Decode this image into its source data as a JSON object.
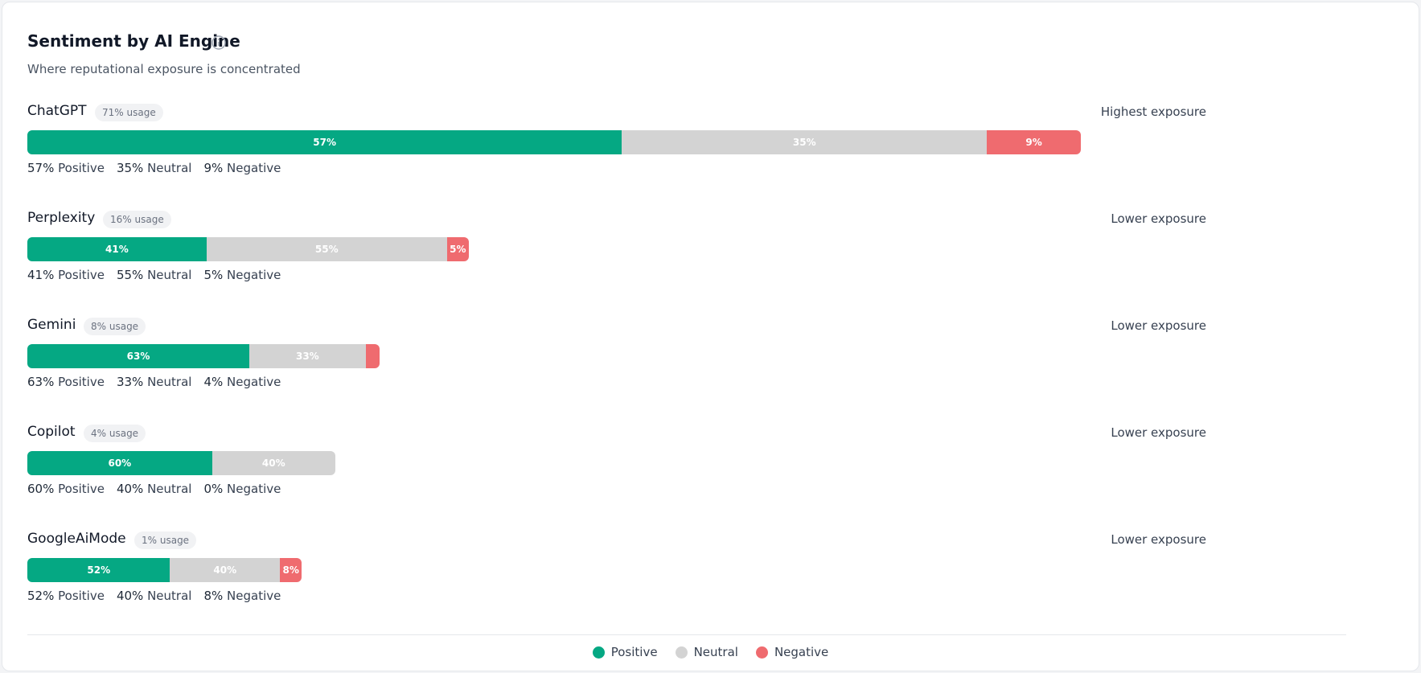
{
  "chart_data": {
    "type": "stacked-bar",
    "title": "Sentiment by AI Engine",
    "subtitle": "Where reputational exposure is concentrated",
    "categories": [
      "ChatGPT",
      "Perplexity",
      "Gemini",
      "Copilot",
      "GoogleAiMode"
    ],
    "usage": [
      71,
      16,
      8,
      4,
      1
    ],
    "usage_labels": [
      "71% usage",
      "16% usage",
      "8% usage",
      "4% usage",
      "1% usage"
    ],
    "exposure_labels": [
      "Highest exposure",
      "Lower exposure",
      "Lower exposure",
      "Lower exposure",
      "Lower exposure"
    ],
    "series": [
      {
        "name": "Positive",
        "color": "#05a883",
        "values": [
          57,
          41,
          63,
          60,
          52
        ],
        "value_labels": [
          "57%",
          "41%",
          "63%",
          "60%",
          "52%"
        ]
      },
      {
        "name": "Neutral",
        "color": "#d3d3d3",
        "values": [
          35,
          55,
          33,
          40,
          40
        ],
        "value_labels": [
          "35%",
          "55%",
          "33%",
          "40%",
          "40%"
        ]
      },
      {
        "name": "Negative",
        "color": "#ef6b6f",
        "values": [
          9,
          5,
          4,
          0,
          8
        ],
        "value_labels": [
          "9%",
          "5%",
          "4%",
          "0%",
          "8%"
        ]
      }
    ]
  }
}
